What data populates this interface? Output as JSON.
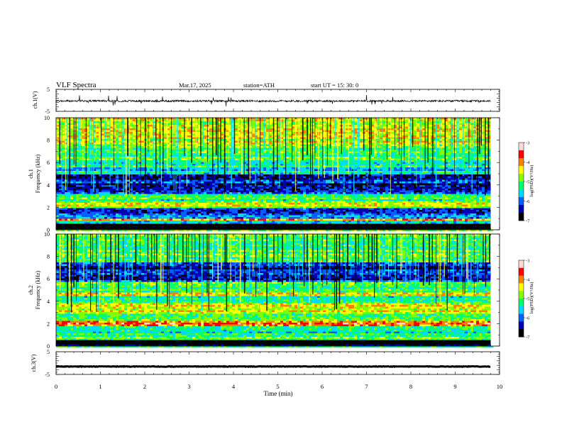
{
  "header": {
    "title": "VLF  Spectra",
    "date": "Mar.17, 2025",
    "station": "station=ATH",
    "start_ut": "start  UT  =   15: 30: 0"
  },
  "chart_data": [
    {
      "type": "line",
      "id": "ch1-waveform",
      "ylabel": "ch.1(V)",
      "ylim": [
        -5,
        5
      ],
      "yticks": [
        "5",
        "-5"
      ],
      "xlim": [
        0,
        10
      ],
      "signal": {
        "level_v": -0.3,
        "amplitude_v": 0.9,
        "end_min": 9.8
      },
      "color": "#000000"
    },
    {
      "type": "heatmap",
      "id": "ch1-spectrogram",
      "panel_label": "ch.1",
      "ylabel": "Frequency  (kHz)",
      "ylim": [
        0,
        10
      ],
      "yticks": [
        "0",
        "2",
        "4",
        "6",
        "8",
        "10"
      ],
      "xlim": [
        0,
        10
      ],
      "data_end_min": 9.8,
      "colorbar": {
        "label": "log(PSD)(V²/Hz)",
        "range": [
          -7,
          -3
        ],
        "ticks": [
          "-3",
          "-4",
          "-5",
          "-6",
          "-7"
        ],
        "colors": [
          "#000000",
          "#0000b0",
          "#0060ff",
          "#00d8ff",
          "#00ff70",
          "#80ff00",
          "#ffff00",
          "#ff8000",
          "#ff0000",
          "#ffd8d8"
        ]
      },
      "bands": [
        {
          "f": [
            0,
            0.45
          ],
          "v": -7.0
        },
        {
          "f": [
            0.45,
            0.75
          ],
          "v": -5.8
        },
        {
          "f": [
            0.75,
            1.0
          ],
          "v": -4.1
        },
        {
          "f": [
            1.0,
            1.9
          ],
          "v": -6.0
        },
        {
          "f": [
            1.9,
            2.5
          ],
          "v": -4.7
        },
        {
          "f": [
            2.5,
            3.2
          ],
          "v": -5.2
        },
        {
          "f": [
            3.2,
            5.0
          ],
          "v": -6.3
        },
        {
          "f": [
            5.0,
            5.6
          ],
          "v": -5.5
        },
        {
          "f": [
            5.6,
            7.6
          ],
          "v": -5.1
        },
        {
          "f": [
            7.6,
            10.0
          ],
          "v": -4.5
        }
      ]
    },
    {
      "type": "heatmap",
      "id": "ch2-spectrogram",
      "panel_label": "ch.2",
      "ylabel": "Frequency  (kHz)",
      "ylim": [
        0,
        10
      ],
      "yticks": [
        "0",
        "2",
        "4",
        "6",
        "8",
        "10"
      ],
      "xlim": [
        0,
        10
      ],
      "data_end_min": 9.8,
      "colorbar": {
        "label": "log(PSD)(V²/Hz)",
        "range": [
          -7,
          -3
        ],
        "ticks": [
          "-3",
          "-4",
          "-5",
          "-6",
          "-7"
        ],
        "colors": [
          "#000000",
          "#0000b0",
          "#0060ff",
          "#00d8ff",
          "#00ff70",
          "#80ff00",
          "#ffff00",
          "#ff8000",
          "#ff0000",
          "#ffd8d8"
        ]
      },
      "bands": [
        {
          "f": [
            0,
            0.45
          ],
          "v": -7.0
        },
        {
          "f": [
            0.45,
            1.0
          ],
          "v": -5.0
        },
        {
          "f": [
            1.0,
            1.7
          ],
          "v": -5.3
        },
        {
          "f": [
            1.7,
            2.3
          ],
          "v": -4.0
        },
        {
          "f": [
            2.3,
            3.0
          ],
          "v": -4.9
        },
        {
          "f": [
            3.0,
            3.8
          ],
          "v": -4.5
        },
        {
          "f": [
            3.8,
            4.4
          ],
          "v": -5.2
        },
        {
          "f": [
            4.4,
            4.8
          ],
          "v": -4.3
        },
        {
          "f": [
            4.8,
            5.8
          ],
          "v": -5.1
        },
        {
          "f": [
            5.8,
            7.5
          ],
          "v": -6.3
        },
        {
          "f": [
            7.5,
            10.0
          ],
          "v": -5.0
        }
      ]
    },
    {
      "type": "line",
      "id": "ch3-waveform",
      "ylabel": "ch.3(V)",
      "ylim": [
        -5,
        5
      ],
      "yticks": [
        "5",
        "-5"
      ],
      "xlim": [
        0,
        10
      ],
      "xlabel": "Time  (min)",
      "xticks": [
        "0",
        "1",
        "2",
        "3",
        "4",
        "5",
        "6",
        "7",
        "8",
        "9",
        "10"
      ],
      "signal": {
        "level_v": -1.5,
        "amplitude_v": 0.25,
        "end_min": 9.8
      },
      "color": "#000000"
    }
  ]
}
